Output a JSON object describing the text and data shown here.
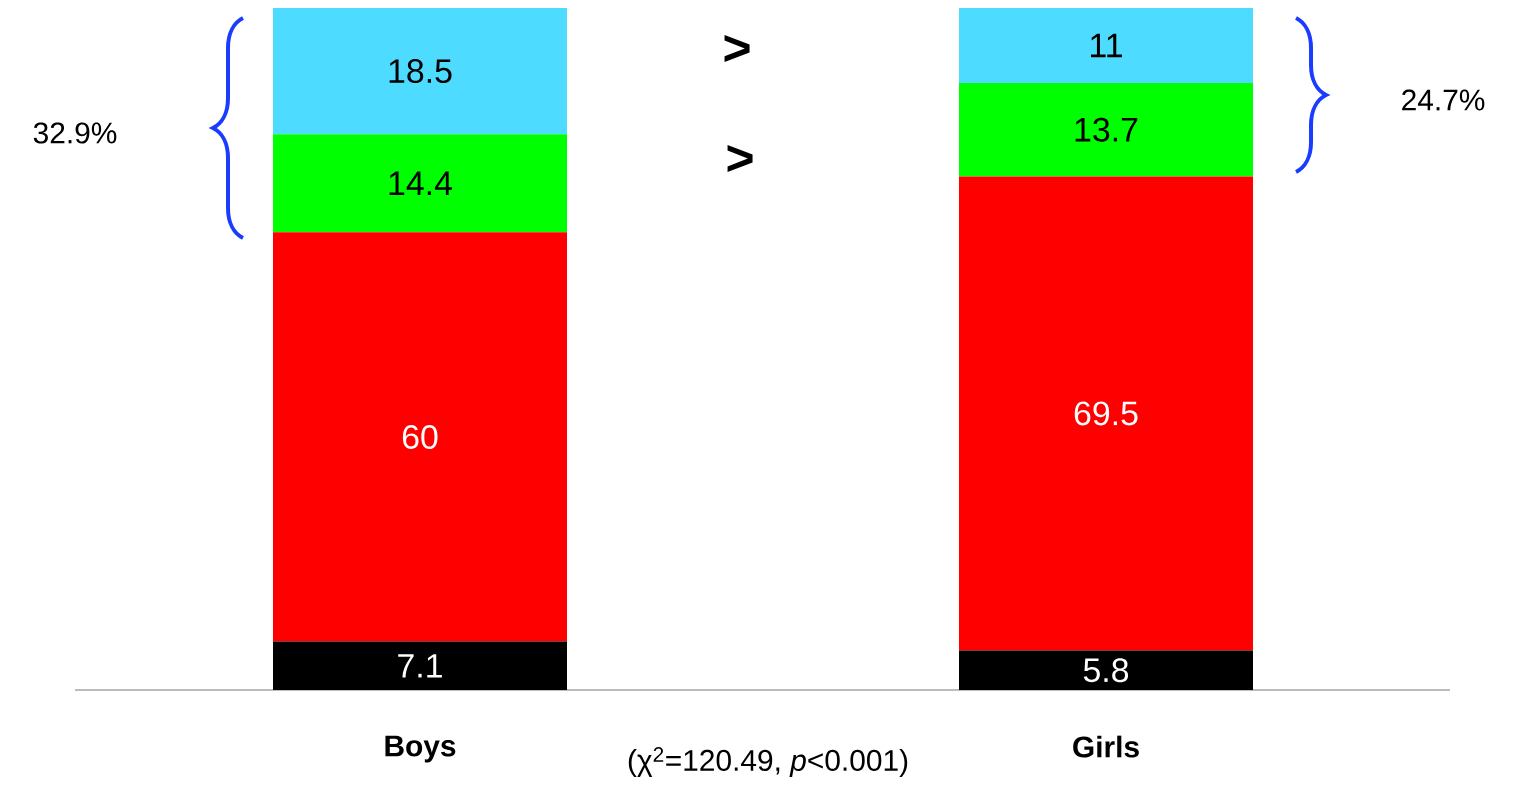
{
  "chart_data": {
    "type": "bar",
    "stacked": true,
    "categories": [
      "Boys",
      "Girls"
    ],
    "series": [
      {
        "color": "#000000",
        "values": [
          7.1,
          5.8
        ]
      },
      {
        "color": "#ff0000",
        "values": [
          60,
          69.5
        ]
      },
      {
        "color": "#00ff00",
        "values": [
          14.4,
          13.7
        ]
      },
      {
        "color": "#4ddcff",
        "values": [
          18.5,
          11
        ]
      }
    ],
    "tick_labels": "x",
    "data_labels": true,
    "annotations": [
      "32.9%",
      "24.7%",
      ">",
      ">",
      "(χ$^{2}$=120.49, *p*<0.001)"
    ]
  }
}
